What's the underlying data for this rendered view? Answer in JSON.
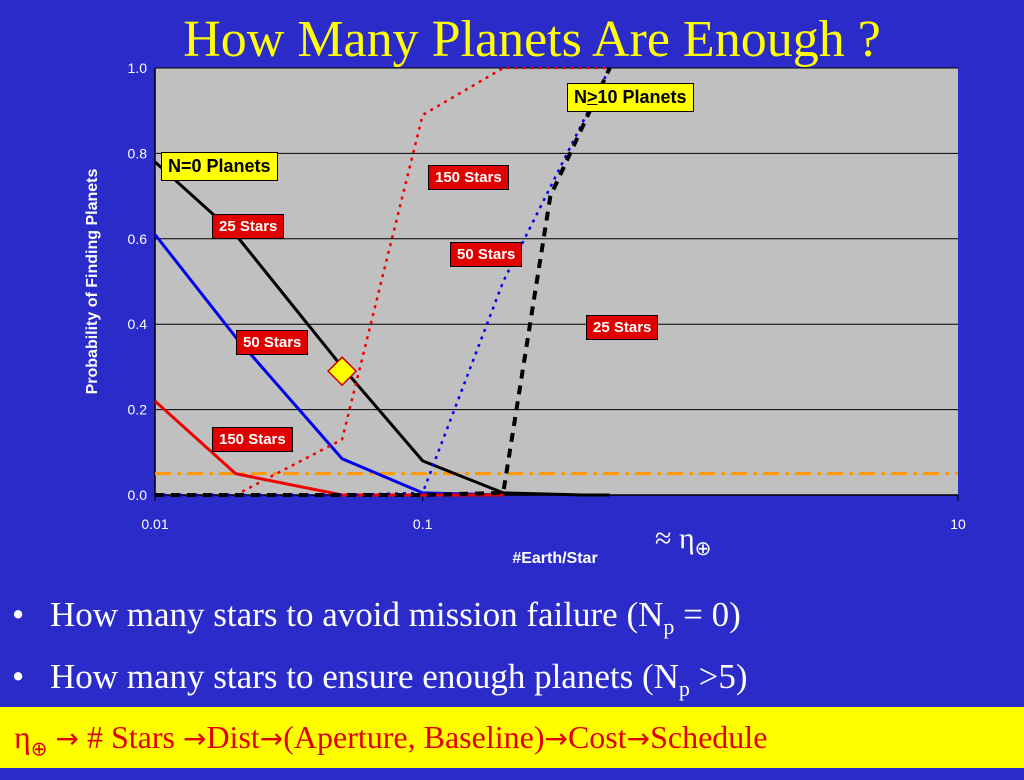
{
  "slide": {
    "title": "How Many Planets Are Enough ?",
    "eta_label": {
      "symbol": "≈ η",
      "subscript": "⊕"
    },
    "bullets": [
      {
        "text": "How many stars to avoid mission failure (N",
        "sub": "p",
        "tail": " = 0)"
      },
      {
        "text": "How many stars to ensure enough planets (N",
        "sub": "p",
        "tail": " >5)"
      }
    ],
    "bullet_symbol": "•",
    "footer": {
      "eta": "η",
      "eta_sub": "⊕",
      "arrow_icon": "→",
      "items": [
        " # Stars ",
        "Dist",
        "(Aperture, Baseline)",
        "Cost",
        "Schedule"
      ]
    }
  },
  "chart_data": {
    "type": "line",
    "xlabel": "#Earth/Star",
    "ylabel": "Probability of Finding  Planets",
    "x_scale": "log",
    "xlim": [
      0.01,
      10
    ],
    "ylim": [
      0,
      1
    ],
    "x_ticks": [
      "0.01",
      "0.1",
      "10"
    ],
    "y_ticks": [
      "0.0",
      "0.2",
      "0.4",
      "0.6",
      "0.8",
      "1.0"
    ],
    "plot_background": "#c0c0c0",
    "grid": "horizontal",
    "colors": {
      "black": "#000000",
      "blue": "#0000ee",
      "red": "#ee0000",
      "threshold": "#ff9900",
      "marker": "#ffff00"
    },
    "series": [
      {
        "group": "N=0 Planets",
        "label": "25 Stars",
        "color": "#000000",
        "style": "solid",
        "x": [
          0.01,
          0.02,
          0.05,
          0.1,
          0.2,
          0.4,
          0.5
        ],
        "y": [
          0.78,
          0.61,
          0.3,
          0.08,
          0.005,
          0.0,
          0.0
        ]
      },
      {
        "group": "N=0 Planets",
        "label": "50 Stars",
        "color": "#0000ee",
        "style": "solid",
        "x": [
          0.01,
          0.02,
          0.05,
          0.1,
          0.2
        ],
        "y": [
          0.61,
          0.37,
          0.085,
          0.005,
          0.0
        ]
      },
      {
        "group": "N=0 Planets",
        "label": "150 Stars",
        "color": "#ee0000",
        "style": "solid",
        "x": [
          0.01,
          0.02,
          0.05,
          0.1,
          0.2
        ],
        "y": [
          0.22,
          0.05,
          0.0,
          0.0,
          0.0
        ]
      },
      {
        "group": "N>10 Planets",
        "label": "150 Stars",
        "color": "#ee0000",
        "style": "dotted",
        "x": [
          0.01,
          0.02,
          0.05,
          0.1,
          0.2,
          0.5
        ],
        "y": [
          0.0,
          0.0,
          0.13,
          0.89,
          1.0,
          1.0
        ]
      },
      {
        "group": "N>10 Planets",
        "label": "50 Stars",
        "color": "#0000ee",
        "style": "dotted",
        "x": [
          0.01,
          0.05,
          0.1,
          0.2,
          0.5
        ],
        "y": [
          0.0,
          0.0,
          0.005,
          0.5,
          1.0
        ]
      },
      {
        "group": "N>10 Planets",
        "label": "25 Stars",
        "color": "#000000",
        "style": "dashed",
        "x": [
          0.01,
          0.1,
          0.2,
          0.3,
          0.5,
          0.5
        ],
        "y": [
          0.0,
          0.0,
          0.005,
          0.7,
          1.0,
          1.0
        ]
      }
    ],
    "threshold": {
      "y": 0.05,
      "color": "#ff9900",
      "style": "dash-dot"
    },
    "marker": {
      "x": 0.05,
      "y": 0.29,
      "shape": "diamond",
      "color": "#ffff00"
    },
    "annotations": {
      "n0": "N=0 Planets",
      "n10_prefix": "N",
      "n10_ge": ">",
      "n10_suffix": "10 Planets",
      "black_solid": "25 Stars",
      "blue_solid": "50 Stars",
      "red_solid": "150 Stars",
      "red_dotted": "150 Stars",
      "blue_dotted": "50 Stars",
      "black_dashed": "25 Stars"
    }
  }
}
